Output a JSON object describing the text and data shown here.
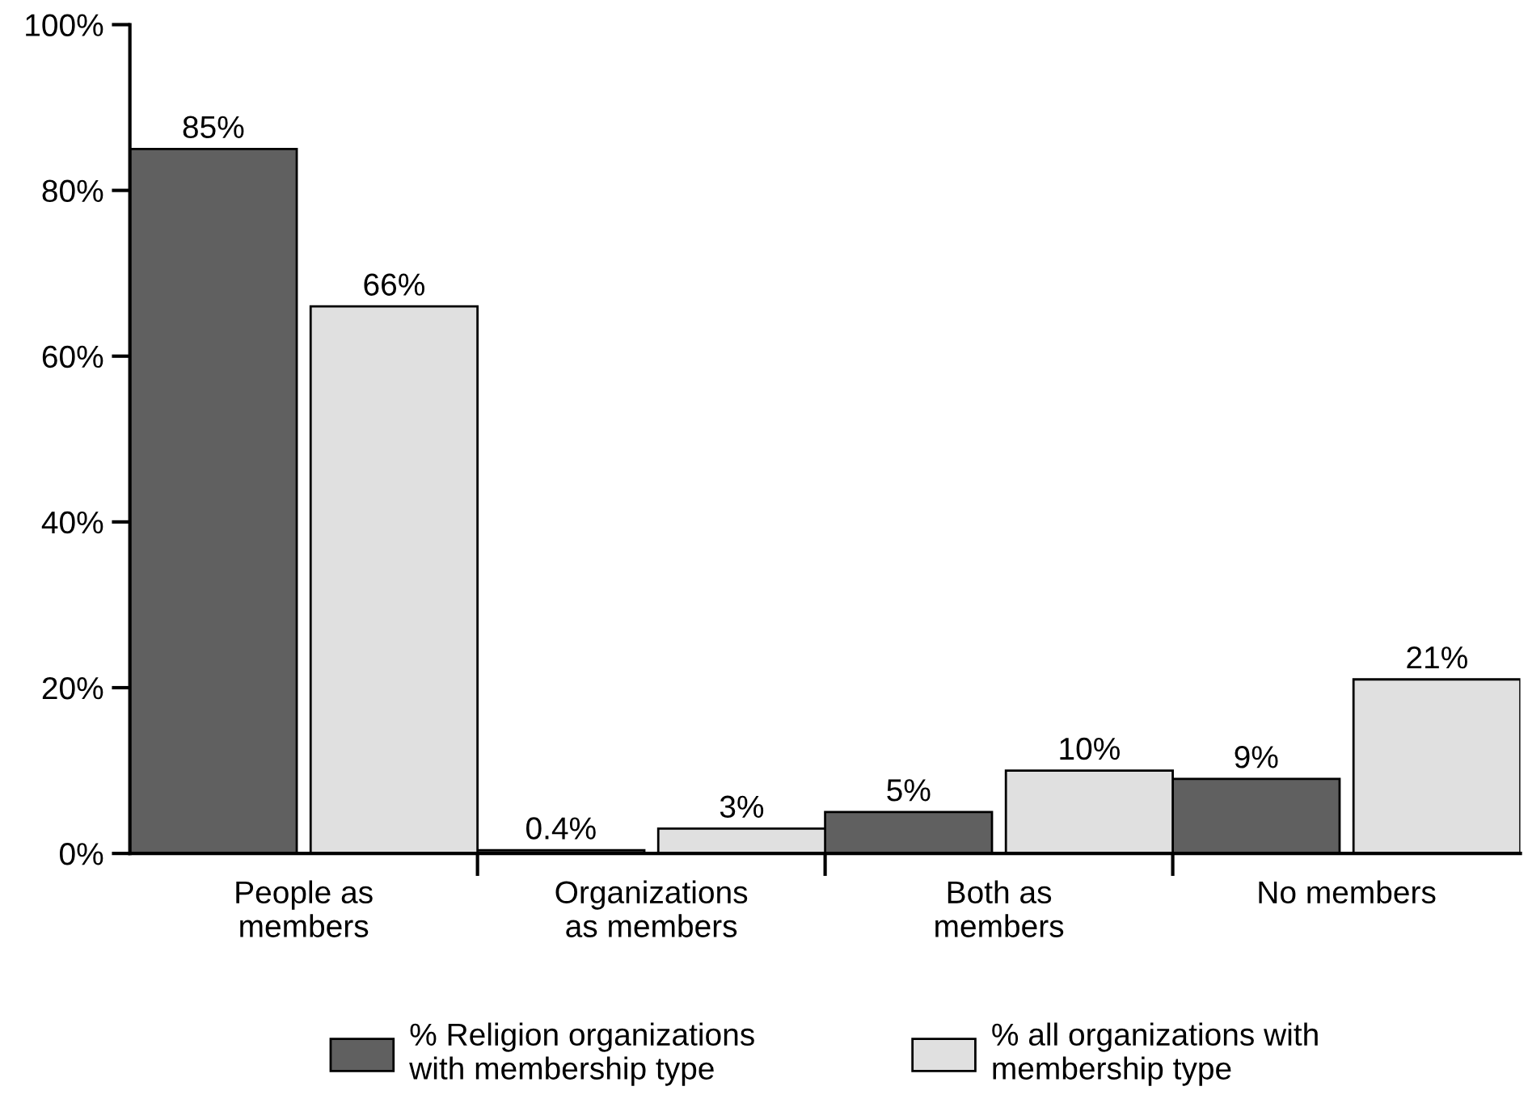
{
  "chart_data": {
    "type": "bar",
    "categories": [
      "People as\nmembers",
      "Organizations\nas members",
      "Both as\nmembers",
      "No members"
    ],
    "series": [
      {
        "name": "% Religion organizations\nwith membership type",
        "color": "#606060",
        "values": [
          85,
          0.4,
          5,
          9
        ],
        "value_labels": [
          "85%",
          "0.4%",
          "5%",
          "9%"
        ]
      },
      {
        "name": "% all organizations with\nmembership type",
        "color": "#e0e0e0",
        "values": [
          66,
          3,
          10,
          21
        ],
        "value_labels": [
          "66%",
          "3%",
          "10%",
          "21%"
        ]
      }
    ],
    "ylim": [
      0,
      100
    ],
    "yticks": [
      {
        "value": 0,
        "label": "0%"
      },
      {
        "value": 20,
        "label": "20%"
      },
      {
        "value": 40,
        "label": "40%"
      },
      {
        "value": 60,
        "label": "60%"
      },
      {
        "value": 80,
        "label": "80%"
      },
      {
        "value": 100,
        "label": "100%"
      }
    ],
    "grid": false,
    "legend": "bottom"
  }
}
